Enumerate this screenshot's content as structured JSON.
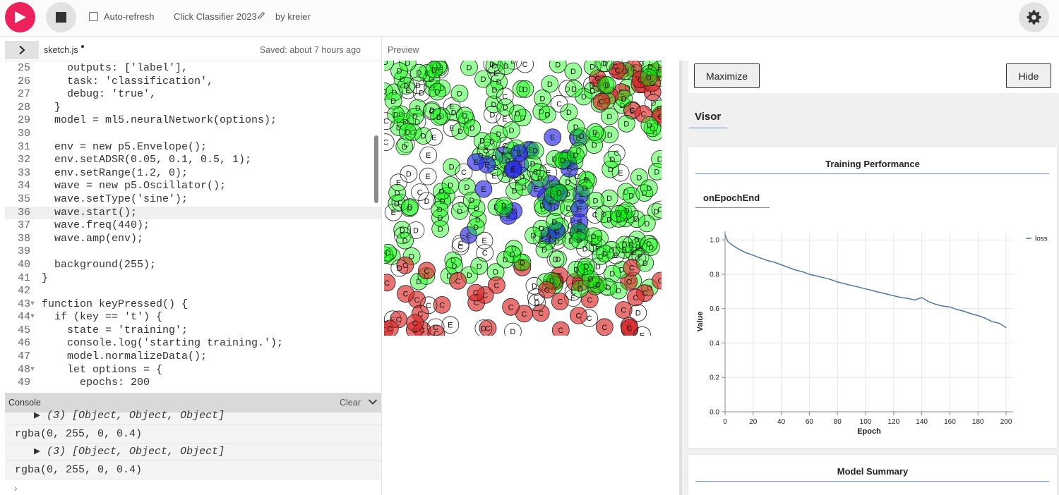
{
  "toolbar": {
    "play_icon": "play-icon",
    "stop_icon": "stop-icon",
    "auto_refresh_label": "Auto-refresh",
    "auto_refresh_checked": false,
    "project_name": "Click Classifier 2023",
    "owner": "by kreier",
    "settings_icon": "gear-icon",
    "accent_color": "#ed225d"
  },
  "file_bar": {
    "file_name": "sketch.js",
    "saved_status": "Saved: about 7 hours ago",
    "preview_label": "Preview"
  },
  "editor": {
    "active_line": 36,
    "lines": [
      {
        "no": "25",
        "fold": "",
        "text": "    outputs: ['label'],"
      },
      {
        "no": "26",
        "fold": "",
        "text": "    task: 'classification',"
      },
      {
        "no": "27",
        "fold": "",
        "text": "    debug: 'true',"
      },
      {
        "no": "28",
        "fold": "",
        "text": "  }"
      },
      {
        "no": "29",
        "fold": "",
        "text": "  model = ml5.neuralNetwork(options);"
      },
      {
        "no": "30",
        "fold": "",
        "text": ""
      },
      {
        "no": "31",
        "fold": "",
        "text": "  env = new p5.Envelope();"
      },
      {
        "no": "32",
        "fold": "",
        "text": "  env.setADSR(0.05, 0.1, 0.5, 1);"
      },
      {
        "no": "33",
        "fold": "",
        "text": "  env.setRange(1.2, 0);"
      },
      {
        "no": "34",
        "fold": "",
        "text": "  wave = new p5.Oscillator();"
      },
      {
        "no": "35",
        "fold": "",
        "text": "  wave.setType('sine');"
      },
      {
        "no": "36",
        "fold": "",
        "text": "  wave.start();"
      },
      {
        "no": "37",
        "fold": "",
        "text": "  wave.freq(440);"
      },
      {
        "no": "38",
        "fold": "",
        "text": "  wave.amp(env);"
      },
      {
        "no": "39",
        "fold": "",
        "text": ""
      },
      {
        "no": "40",
        "fold": "",
        "text": "  background(255);"
      },
      {
        "no": "41",
        "fold": "",
        "text": "}"
      },
      {
        "no": "42",
        "fold": "",
        "text": ""
      },
      {
        "no": "43",
        "fold": "▼",
        "text": "function keyPressed() {"
      },
      {
        "no": "44",
        "fold": "▼",
        "text": "  if (key == 't') {"
      },
      {
        "no": "45",
        "fold": "",
        "text": "    state = 'training';"
      },
      {
        "no": "46",
        "fold": "",
        "text": "    console.log('starting training.');"
      },
      {
        "no": "47",
        "fold": "",
        "text": "    model.normalizeData();"
      },
      {
        "no": "48",
        "fold": "▼",
        "text": "    let options = {"
      },
      {
        "no": "49",
        "fold": "",
        "text": "      epochs: 200"
      }
    ]
  },
  "console": {
    "title": "Console",
    "clear_label": "Clear",
    "collapse_icon": "chevron-down-icon",
    "rows": [
      {
        "kind": "object",
        "text": "▶ (3) [Object, Object, Object]"
      },
      {
        "kind": "value",
        "text": "rgba(0, 255, 0, 0.4)"
      },
      {
        "kind": "object",
        "text": "▶ (3) [Object, Object, Object]"
      },
      {
        "kind": "value",
        "text": "rgba(0, 255, 0, 0.4)"
      }
    ],
    "prompt": "›"
  },
  "preview": {
    "label_colors": {
      "C": "rgba(220, 40, 40, 0.65)",
      "D": "rgba(0, 255, 0, 0.4)",
      "E": "rgba(40, 40, 230, 0.65)"
    }
  },
  "visor": {
    "maximize_label": "Maximize",
    "hide_label": "Hide",
    "tab_label": "Visor",
    "performance_title": "Training Performance",
    "epoch_tab_label": "onEpochEnd",
    "summary_title": "Model Summary"
  },
  "chart_data": {
    "type": "line",
    "xlabel": "Epoch",
    "ylabel": "Value",
    "xlim": [
      0,
      205
    ],
    "ylim": [
      0,
      1.05
    ],
    "x_ticks": [
      0,
      20,
      40,
      60,
      80,
      100,
      120,
      140,
      160,
      180,
      200
    ],
    "y_ticks": [
      0.0,
      0.2,
      0.4,
      0.6,
      0.8,
      1.0
    ],
    "y_tick_labels": [
      "0.0",
      "0.2",
      "0.4",
      "0.6",
      "0.8",
      "1.0"
    ],
    "grid": true,
    "legend_position": "top-right",
    "series": [
      {
        "name": "loss",
        "color": "#4c78a8",
        "x": [
          0,
          2,
          5,
          10,
          15,
          20,
          25,
          30,
          35,
          40,
          45,
          50,
          55,
          60,
          65,
          70,
          75,
          80,
          85,
          90,
          95,
          100,
          105,
          110,
          115,
          120,
          125,
          130,
          135,
          140,
          145,
          150,
          155,
          160,
          165,
          170,
          175,
          180,
          185,
          190,
          195,
          200
        ],
        "values": [
          1.03,
          0.99,
          0.97,
          0.945,
          0.925,
          0.91,
          0.895,
          0.88,
          0.87,
          0.855,
          0.84,
          0.825,
          0.815,
          0.8,
          0.79,
          0.78,
          0.77,
          0.755,
          0.745,
          0.735,
          0.725,
          0.715,
          0.705,
          0.695,
          0.685,
          0.675,
          0.665,
          0.66,
          0.65,
          0.665,
          0.64,
          0.625,
          0.615,
          0.61,
          0.595,
          0.585,
          0.57,
          0.56,
          0.545,
          0.525,
          0.515,
          0.49
        ]
      }
    ]
  }
}
